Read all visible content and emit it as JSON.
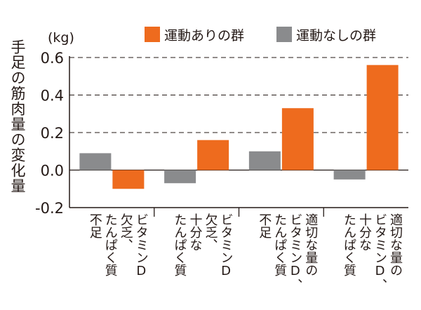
{
  "chart_data": {
    "type": "bar",
    "unit": "(kg)",
    "ylabel": "手足の筋肉量の変化量",
    "ylim": [
      -0.2,
      0.6
    ],
    "yticks": [
      "0.6",
      "0.4",
      "0.2",
      "0.0",
      "-0.2"
    ],
    "grid": "dashed horizontal",
    "legend_position": "top-right",
    "categories": [
      [
        "不足",
        "たんぱく質",
        "ビタミンD"
      ],
      [
        "欠乏、",
        "十分な",
        "たんぱく質",
        "ビタミンD"
      ],
      [
        "不足",
        "たんぱく質",
        "ビタミンD、"
      ],
      [
        "適切な量の",
        "十分な",
        "たんぱく質",
        "ビタミンD、"
      ]
    ],
    "category_lines": [
      [
        "ビタミンD",
        "欠乏、",
        "たんぱく質",
        "不足"
      ],
      [
        "ビタミンD",
        "欠乏、",
        "十分な",
        "たんぱく質"
      ],
      [
        "適切な量の",
        "ビタミンD、",
        "たんぱく質",
        "不足"
      ],
      [
        "適切な量の",
        "ビタミンD、",
        "十分な",
        "たんぱく質"
      ]
    ],
    "series": [
      {
        "name": "運動ありの群",
        "color": "#ee6b1e",
        "values": [
          -0.1,
          0.16,
          0.33,
          0.56
        ]
      },
      {
        "name": "運動なしの群",
        "color": "#8a8b8d",
        "values": [
          0.09,
          -0.07,
          0.1,
          -0.05
        ]
      }
    ]
  }
}
